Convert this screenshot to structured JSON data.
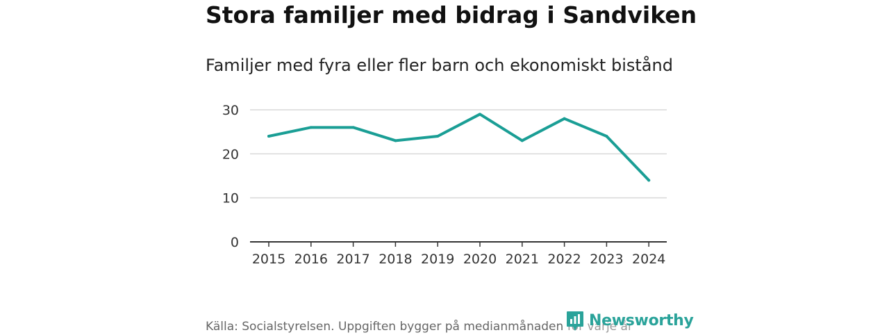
{
  "header": {
    "title": "Stora familjer med bidrag i Sandviken",
    "subtitle": "Familjer med fyra eller fler barn och ekonomiskt bistånd"
  },
  "footer": {
    "source": "Källa: Socialstyrelsen. Uppgiften bygger på medianmånaden för varje år",
    "brand": "Newsworthy"
  },
  "colors": {
    "line": "#1a9e95",
    "grid": "#d9d9d9",
    "axis": "#333333",
    "brand": "#2aa39a"
  },
  "chart_data": {
    "type": "line",
    "title": "Stora familjer med bidrag i Sandviken",
    "subtitle": "Familjer med fyra eller fler barn och ekonomiskt bistånd",
    "xlabel": "",
    "ylabel": "",
    "categories": [
      "2015",
      "2016",
      "2017",
      "2018",
      "2019",
      "2020",
      "2021",
      "2022",
      "2023",
      "2024"
    ],
    "series": [
      {
        "values": [
          24,
          26,
          26,
          23,
          24,
          29,
          23,
          28,
          24,
          14
        ]
      }
    ],
    "ylim": [
      0,
      30
    ],
    "yticks": [
      0,
      10,
      20,
      30
    ],
    "grid": true,
    "legend": "none"
  }
}
